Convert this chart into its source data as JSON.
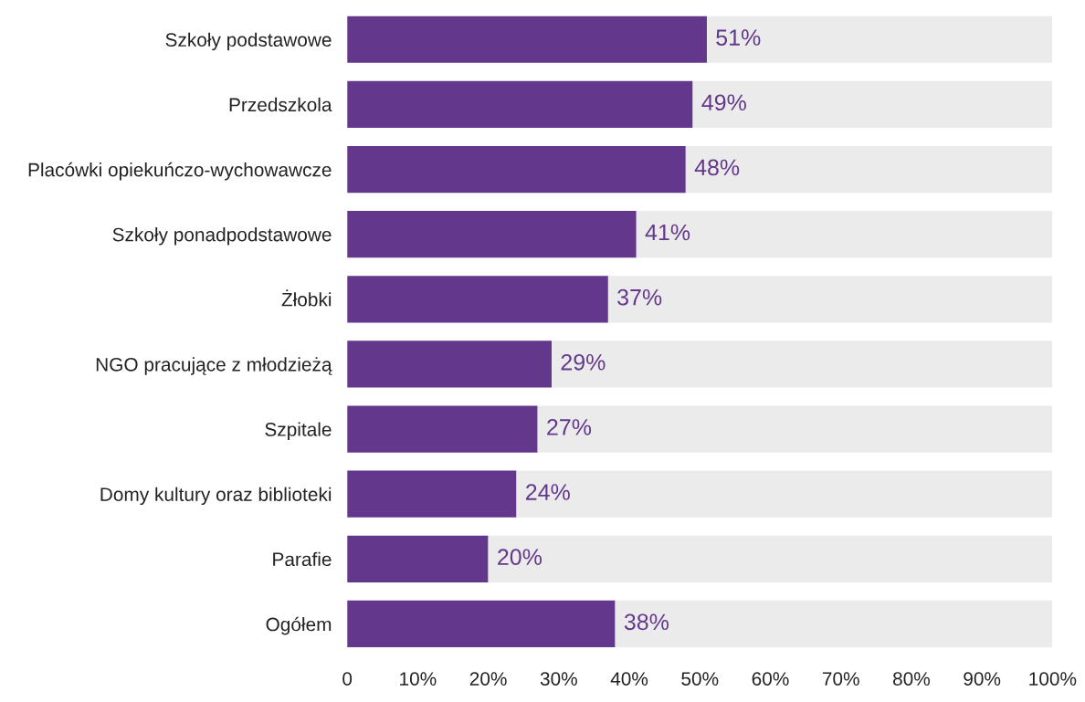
{
  "chart_data": {
    "type": "bar",
    "orientation": "horizontal",
    "stacked": true,
    "categories": [
      "Szkoły podstawowe",
      "Przedszkola",
      "Placówki opiekuńczo-wychowawcze",
      "Szkoły ponadpodstawowe",
      "Żłobki",
      "NGO pracujące z młodzieżą",
      "Szpitale",
      "Domy kultury oraz biblioteki",
      "Parafie",
      "Ogółem"
    ],
    "series": [
      {
        "color": "#63388c",
        "values": [
          51,
          49,
          48,
          41,
          37,
          29,
          27,
          24,
          20,
          38
        ],
        "value_labels": [
          "51%",
          "49%",
          "48%",
          "41%",
          "37%",
          "29%",
          "27%",
          "24%",
          "20%",
          "38%"
        ]
      },
      {
        "color": "#ebebeb",
        "values": [
          49,
          51,
          52,
          59,
          63,
          71,
          73,
          76,
          80,
          62
        ]
      }
    ],
    "xlim": [
      0,
      100
    ],
    "xticks": [
      0,
      {
        "value": 10,
        "label": "10%"
      },
      {
        "value": 20,
        "label": "20%"
      },
      {
        "value": 30,
        "label": "30%"
      },
      {
        "value": 40,
        "label": "40%"
      },
      {
        "value": 50,
        "label": "50%"
      },
      {
        "value": 60,
        "label": "60%"
      },
      {
        "value": 70,
        "label": "70%"
      },
      {
        "value": 80,
        "label": "80%"
      },
      {
        "value": 90,
        "label": "90%"
      },
      {
        "value": 100,
        "label": "100%"
      }
    ],
    "grid": false
  }
}
